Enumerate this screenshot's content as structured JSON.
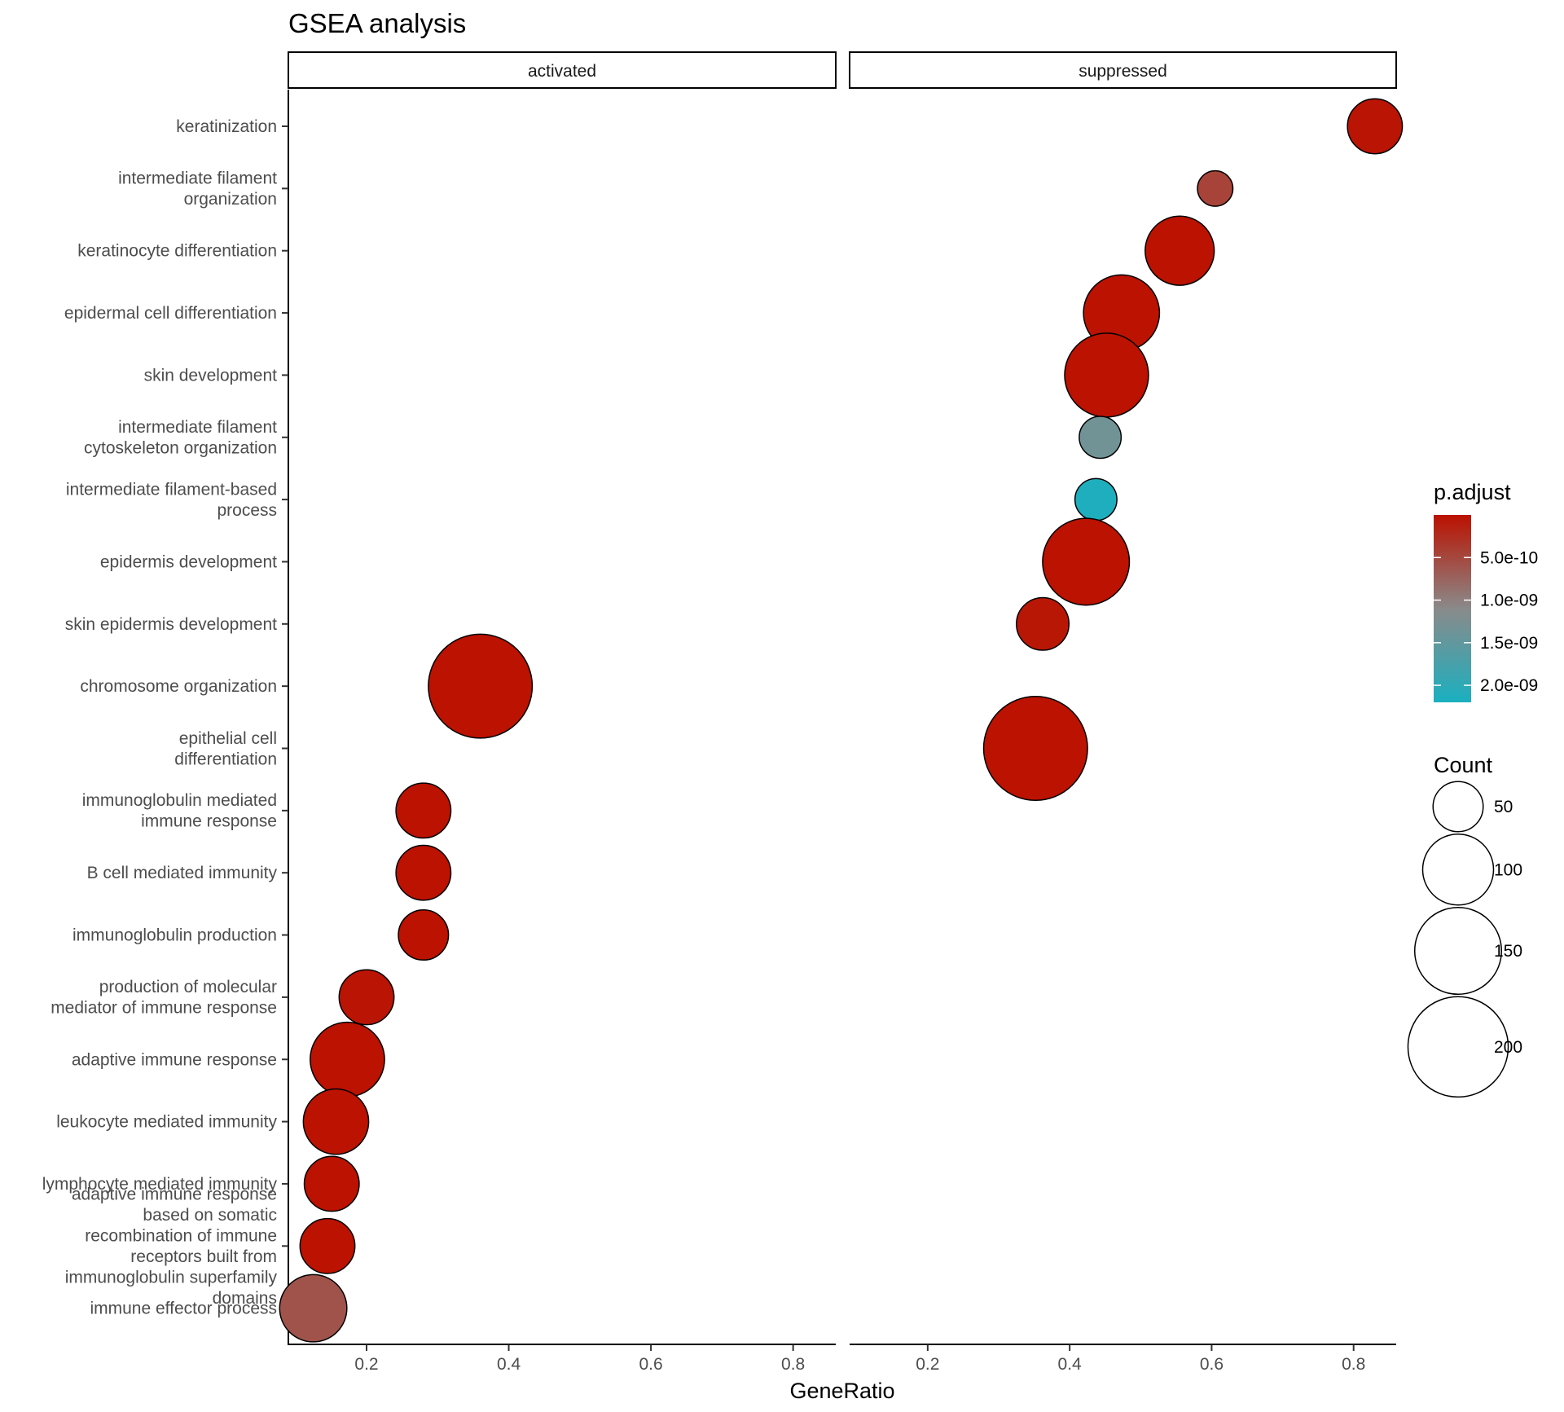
{
  "chart_data": {
    "type": "scatter",
    "title": "GSEA analysis",
    "xlabel": "GeneRatio",
    "ylabel": "",
    "xlim": [
      0.09,
      0.86
    ],
    "xticks": [
      0.2,
      0.4,
      0.6,
      0.8
    ],
    "xtick_labels": [
      "0.2",
      "0.4",
      "0.6",
      "0.8"
    ],
    "facets": [
      "activated",
      "suppressed"
    ],
    "categories": [
      "keratinization",
      "intermediate filament\norganization",
      "keratinocyte differentiation",
      "epidermal cell differentiation",
      "skin development",
      "intermediate filament\ncytoskeleton organization",
      "intermediate filament-based\nprocess",
      "epidermis development",
      "skin epidermis development",
      "chromosome organization",
      "epithelial cell\ndifferentiation",
      "immunoglobulin mediated\nimmune response",
      "B cell mediated immunity",
      "immunoglobulin production",
      "production of molecular\nmediator of immune response",
      "adaptive immune response",
      "leukocyte mediated immunity",
      "lymphocyte mediated immunity",
      "adaptive immune response\nbased on somatic\nrecombination of immune\nreceptors built from\nimmunoglobulin superfamily\ndomains",
      "immune effector process"
    ],
    "points": [
      {
        "facet": "suppressed",
        "category": "keratinization",
        "x": 0.83,
        "count": 60,
        "p_adjust": 3e-11
      },
      {
        "facet": "suppressed",
        "category": "intermediate filament\norganization",
        "x": 0.605,
        "count": 25,
        "p_adjust": 4.5e-10
      },
      {
        "facet": "suppressed",
        "category": "keratinocyte differentiation",
        "x": 0.555,
        "count": 95,
        "p_adjust": 1e-11
      },
      {
        "facet": "suppressed",
        "category": "epidermal cell differentiation",
        "x": 0.473,
        "count": 115,
        "p_adjust": 1e-11
      },
      {
        "facet": "suppressed",
        "category": "skin development",
        "x": 0.452,
        "count": 140,
        "p_adjust": 1e-11
      },
      {
        "facet": "suppressed",
        "category": "intermediate filament\ncytoskeleton organization",
        "x": 0.443,
        "count": 35,
        "p_adjust": 1.35e-09
      },
      {
        "facet": "suppressed",
        "category": "intermediate filament-based\nprocess",
        "x": 0.437,
        "count": 35,
        "p_adjust": 2.15e-09
      },
      {
        "facet": "suppressed",
        "category": "epidermis development",
        "x": 0.423,
        "count": 150,
        "p_adjust": 1e-11
      },
      {
        "facet": "suppressed",
        "category": "skin epidermis development",
        "x": 0.362,
        "count": 55,
        "p_adjust": 5e-11
      },
      {
        "facet": "activated",
        "category": "chromosome organization",
        "x": 0.36,
        "count": 215,
        "p_adjust": 1e-11
      },
      {
        "facet": "suppressed",
        "category": "epithelial cell\ndifferentiation",
        "x": 0.352,
        "count": 215,
        "p_adjust": 1e-11
      },
      {
        "facet": "activated",
        "category": "immunoglobulin mediated\nimmune response",
        "x": 0.28,
        "count": 60,
        "p_adjust": 1e-11
      },
      {
        "facet": "activated",
        "category": "B cell mediated immunity",
        "x": 0.28,
        "count": 60,
        "p_adjust": 1e-11
      },
      {
        "facet": "activated",
        "category": "immunoglobulin production",
        "x": 0.28,
        "count": 50,
        "p_adjust": 1e-11
      },
      {
        "facet": "activated",
        "category": "production of molecular\nmediator of immune response",
        "x": 0.2,
        "count": 60,
        "p_adjust": 3e-11
      },
      {
        "facet": "activated",
        "category": "adaptive immune response",
        "x": 0.173,
        "count": 110,
        "p_adjust": 1e-11
      },
      {
        "facet": "activated",
        "category": "leukocyte mediated immunity",
        "x": 0.157,
        "count": 85,
        "p_adjust": 1e-11
      },
      {
        "facet": "activated",
        "category": "lymphocyte mediated immunity",
        "x": 0.151,
        "count": 60,
        "p_adjust": 1e-11
      },
      {
        "facet": "activated",
        "category": "adaptive immune response\nbased on somatic\nrecombination of immune\nreceptors built from\nimmunoglobulin superfamily\ndomains",
        "x": 0.145,
        "count": 60,
        "p_adjust": 1e-11
      },
      {
        "facet": "activated",
        "category": "immune effector process",
        "x": 0.125,
        "count": 90,
        "p_adjust": 6e-10
      }
    ],
    "color_legend": {
      "title": "p.adjust",
      "ticks": [
        5e-10,
        1e-09,
        1.5e-09,
        2e-09
      ],
      "tick_labels": [
        "5.0e-10",
        "1.0e-09",
        "1.5e-09",
        "2.0e-09"
      ],
      "range": [
        0,
        2.2e-09
      ],
      "low_color": "#bb1100",
      "mid_color": "#8a8a8a",
      "high_color": "#1ab0c0"
    },
    "size_legend": {
      "title": "Count",
      "values": [
        50,
        100,
        150,
        200
      ],
      "labels": [
        "50",
        "100",
        "150",
        "200"
      ]
    },
    "grid": false
  }
}
